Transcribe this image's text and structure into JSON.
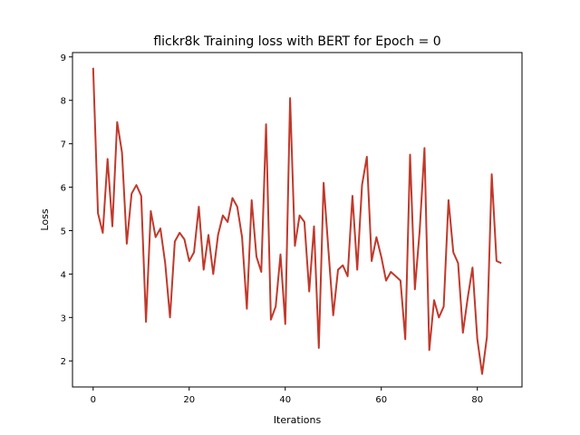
{
  "chart_data": {
    "type": "line",
    "title": "flickr8k Training loss with BERT for Epoch = 0",
    "xlabel": "Iterations",
    "ylabel": "Loss",
    "xlim": [
      -4.3,
      89.3
    ],
    "ylim": [
      1.4,
      9.1
    ],
    "xticks": [
      0,
      20,
      40,
      60,
      80
    ],
    "yticks": [
      2,
      3,
      4,
      5,
      6,
      7,
      8,
      9
    ],
    "grid": false,
    "legend": "none",
    "line_color": "#c0392b",
    "x": [
      0,
      1,
      2,
      3,
      4,
      5,
      6,
      7,
      8,
      9,
      10,
      11,
      12,
      13,
      14,
      15,
      16,
      17,
      18,
      19,
      20,
      21,
      22,
      23,
      24,
      25,
      26,
      27,
      28,
      29,
      30,
      31,
      32,
      33,
      34,
      35,
      36,
      37,
      38,
      39,
      40,
      41,
      42,
      43,
      44,
      45,
      46,
      47,
      48,
      49,
      50,
      51,
      52,
      53,
      54,
      55,
      56,
      57,
      58,
      59,
      60,
      61,
      62,
      63,
      64,
      65,
      66,
      67,
      68,
      69,
      70,
      71,
      72,
      73,
      74,
      75,
      76,
      77,
      78,
      79,
      80,
      81,
      82,
      83,
      84,
      85
    ],
    "series": [
      {
        "values": [
          8.75,
          5.4,
          4.95,
          6.65,
          5.1,
          7.5,
          6.8,
          4.7,
          5.85,
          6.05,
          5.8,
          2.9,
          5.45,
          4.85,
          5.05,
          4.25,
          3.0,
          4.75,
          4.95,
          4.8,
          4.3,
          4.5,
          5.55,
          4.1,
          4.9,
          4.0,
          4.9,
          5.35,
          5.2,
          5.75,
          5.55,
          4.85,
          3.2,
          5.7,
          4.4,
          4.05,
          7.45,
          2.95,
          3.25,
          4.45,
          2.85,
          8.05,
          4.65,
          5.35,
          5.2,
          3.6,
          5.1,
          2.3,
          6.1,
          4.55,
          3.05,
          4.1,
          4.2,
          3.95,
          5.8,
          4.1,
          6.05,
          6.7,
          4.3,
          4.85,
          4.4,
          3.85,
          4.05,
          3.95,
          3.85,
          2.5,
          6.75,
          3.65,
          5.0,
          6.9,
          2.25,
          3.4,
          3.0,
          3.25,
          5.7,
          4.5,
          4.25,
          2.65,
          3.45,
          4.15,
          2.5,
          1.7,
          2.55,
          6.3,
          4.3,
          4.25
        ]
      }
    ]
  }
}
